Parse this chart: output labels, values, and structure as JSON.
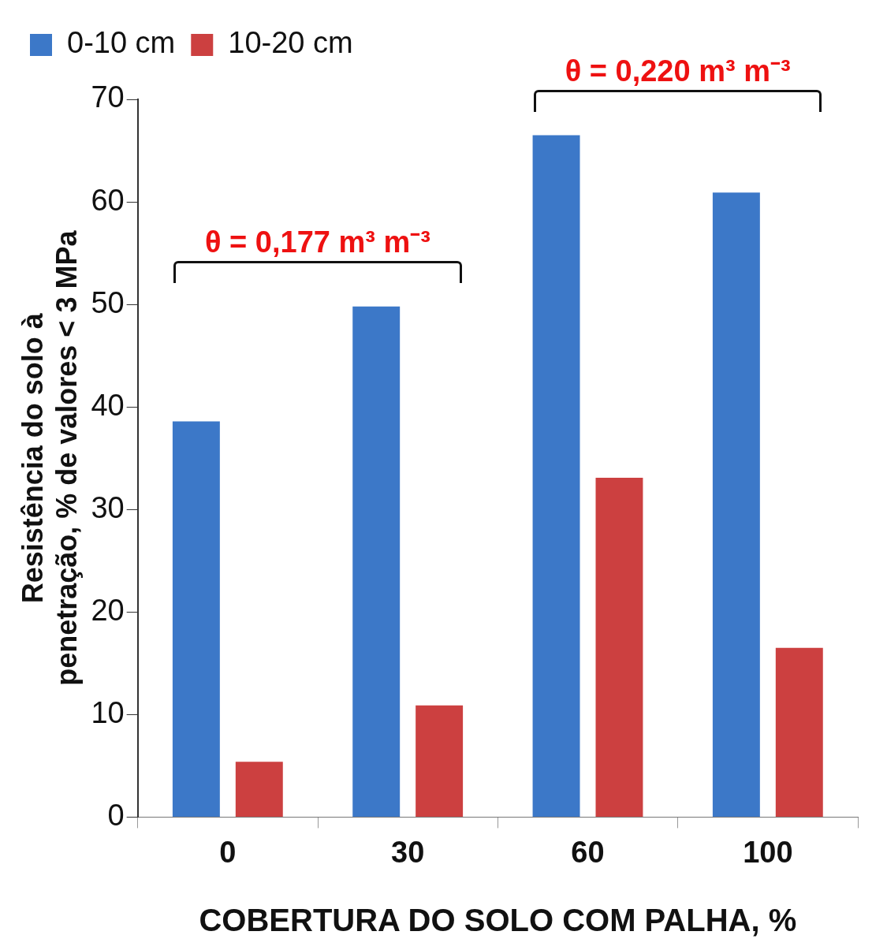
{
  "chart_data": {
    "type": "bar",
    "xlabel": "COBERTURA DO SOLO COM PALHA, %",
    "ylabel": "Resistência do solo à penetração, % de valores < 3 MPa",
    "categories": [
      "0",
      "30",
      "60",
      "100"
    ],
    "series": [
      {
        "name": "0-10 cm",
        "color": "#3c78c8",
        "values": [
          38.6,
          49.8,
          66.5,
          60.9
        ]
      },
      {
        "name": "10-20 cm",
        "color": "#cc4040",
        "values": [
          5.4,
          10.9,
          33.1,
          16.5
        ]
      }
    ],
    "ylim": [
      0,
      70
    ],
    "yticks": [
      0,
      10,
      20,
      30,
      40,
      50,
      60,
      70
    ],
    "grid": false,
    "legend": "top left",
    "annotations": [
      "θ = 0,177 m³ m⁻³",
      "θ = 0,220 m³ m⁻³"
    ]
  }
}
